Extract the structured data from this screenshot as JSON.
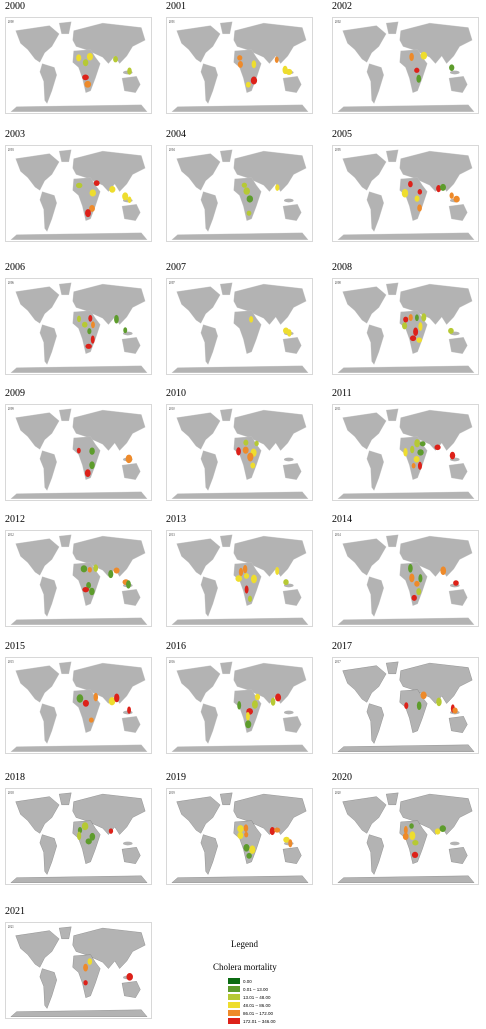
{
  "panels": [
    "2000",
    "2001",
    "2002",
    "2003",
    "2004",
    "2005",
    "2006",
    "2007",
    "2008",
    "2009",
    "2010",
    "2011",
    "2012",
    "2013",
    "2014",
    "2015",
    "2016",
    "2017",
    "2018",
    "2019",
    "2020",
    "2021"
  ],
  "legend": {
    "title": "Legend",
    "subtitle": "Cholera mortality",
    "items": [
      {
        "label": "0.00",
        "color": "#0b6b12"
      },
      {
        "label": "0.01 – 13.00",
        "color": "#5d9c2c"
      },
      {
        "label": "13.01 – 48.00",
        "color": "#b6c934"
      },
      {
        "label": "48.01 – 86.00",
        "color": "#eedd2e"
      },
      {
        "label": "86.01 – 172.00",
        "color": "#ee8a2a"
      },
      {
        "label": "172.01 – 346.00",
        "color": "#dd2119"
      }
    ]
  }
}
